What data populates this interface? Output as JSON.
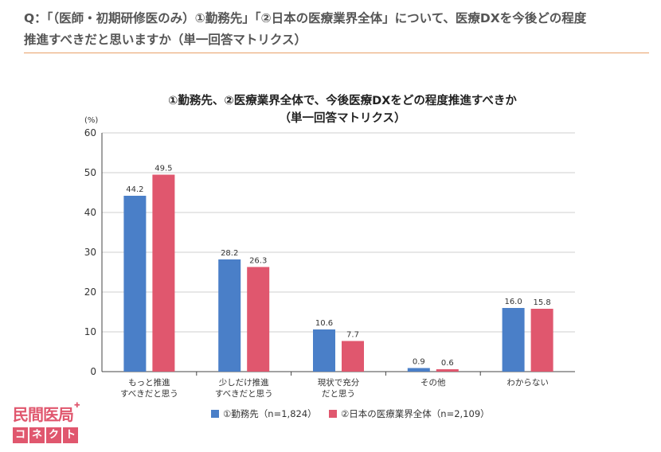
{
  "question": {
    "line1": "Q：「（医師・初期研修医のみ）①勤務先」「②日本の医療業界全体」について、医療DXを今後どの程度",
    "line2": "推進すべきだと思いますか（単一回答マトリクス）"
  },
  "brand": {
    "logo_top": "民間医局",
    "logo_bottom": [
      "コ",
      "ネ",
      "ク",
      "ト"
    ],
    "color": "#e0576e"
  },
  "chart_data": {
    "type": "bar",
    "title": "①勤務先、②医療業界全体で、今後医療DXをどの程度推進すべきか",
    "subtitle": "（単一回答マトリクス）",
    "ylabel": "(%)",
    "ylim": [
      0,
      60
    ],
    "yticks": [
      "0",
      "10",
      "20",
      "30",
      "40",
      "50",
      "60"
    ],
    "grid": true,
    "legend_position": "bottom",
    "categories": [
      [
        "もっと推進",
        "すべきだと思う"
      ],
      [
        "少しだけ推進",
        "すべきだと思う"
      ],
      [
        "現状で充分",
        "だと思う"
      ],
      [
        "その他"
      ],
      [
        "わからない"
      ]
    ],
    "series": [
      {
        "name": "①勤務先（n=1,824）",
        "color": "#4a7fc8",
        "values": [
          44.2,
          28.2,
          10.6,
          0.9,
          16.0
        ],
        "labels": [
          "44.2",
          "28.2",
          "10.6",
          "0.9",
          "16.0"
        ]
      },
      {
        "name": "②日本の医療業界全体（n=2,109）",
        "color": "#e0576e",
        "values": [
          49.5,
          26.3,
          7.7,
          0.6,
          15.8
        ],
        "labels": [
          "49.5",
          "26.3",
          "7.7",
          "0.6",
          "15.8"
        ]
      }
    ]
  }
}
